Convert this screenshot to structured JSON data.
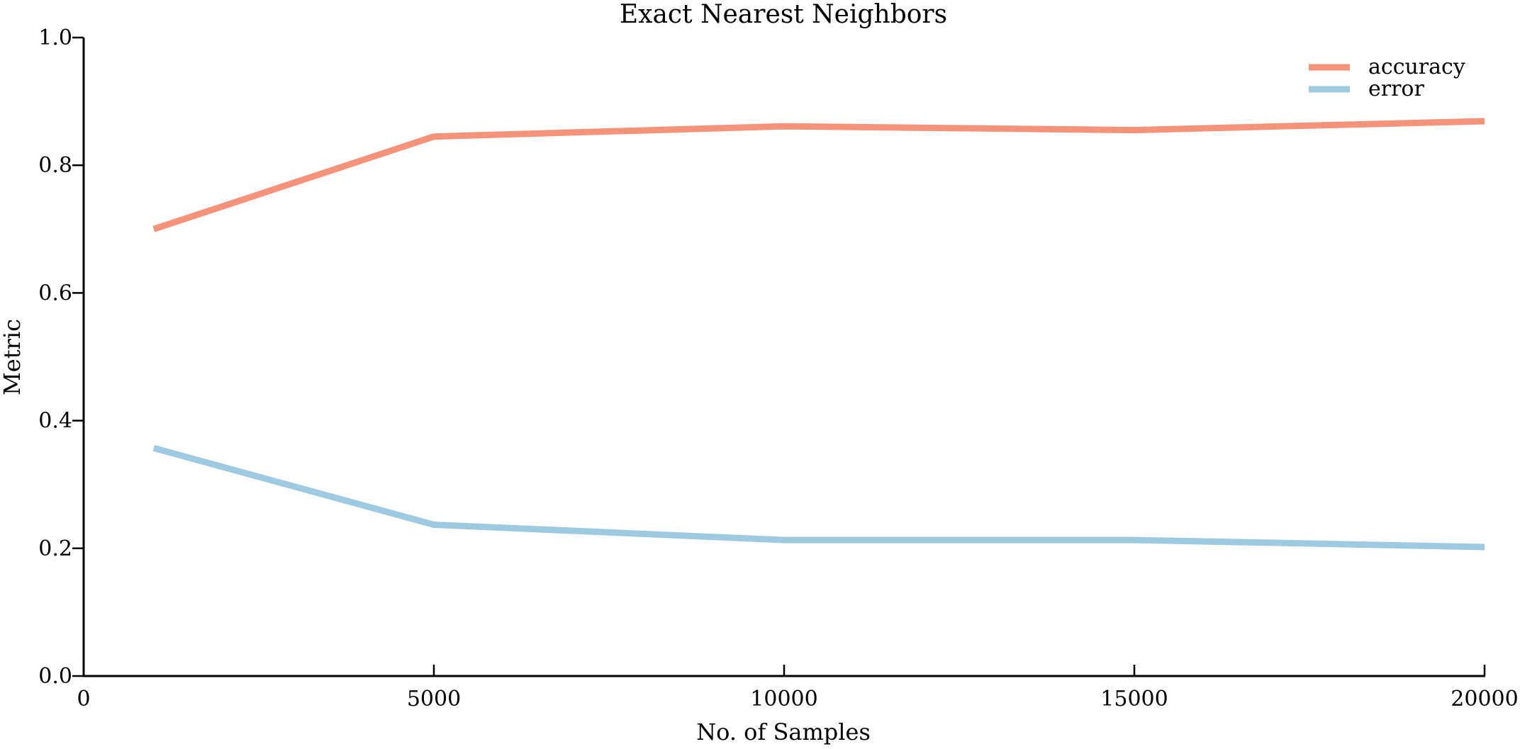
{
  "chart_data": {
    "type": "line",
    "title": "Exact Nearest Neighbors",
    "xlabel": "No. of Samples",
    "ylabel": "Metric",
    "xlim": [
      0,
      20000
    ],
    "ylim": [
      0.0,
      1.0
    ],
    "x_ticks": [
      0,
      5000,
      10000,
      15000,
      20000
    ],
    "x_tick_labels": [
      "0",
      "5000",
      "10000",
      "15000",
      "20000"
    ],
    "y_ticks": [
      0.0,
      0.2,
      0.4,
      0.6,
      0.8,
      1.0
    ],
    "y_tick_labels": [
      "0.0",
      "0.2",
      "0.4",
      "0.6",
      "0.8",
      "1.0"
    ],
    "grid": false,
    "legend_position": "top-right",
    "x": [
      1000,
      5000,
      10000,
      15000,
      20000
    ],
    "series": [
      {
        "name": "accuracy",
        "color": "#f4937a",
        "values": [
          0.7,
          0.845,
          0.861,
          0.855,
          0.869
        ]
      },
      {
        "name": "error",
        "color": "#9ecae1",
        "values": [
          0.357,
          0.237,
          0.213,
          0.213,
          0.202
        ]
      }
    ]
  }
}
